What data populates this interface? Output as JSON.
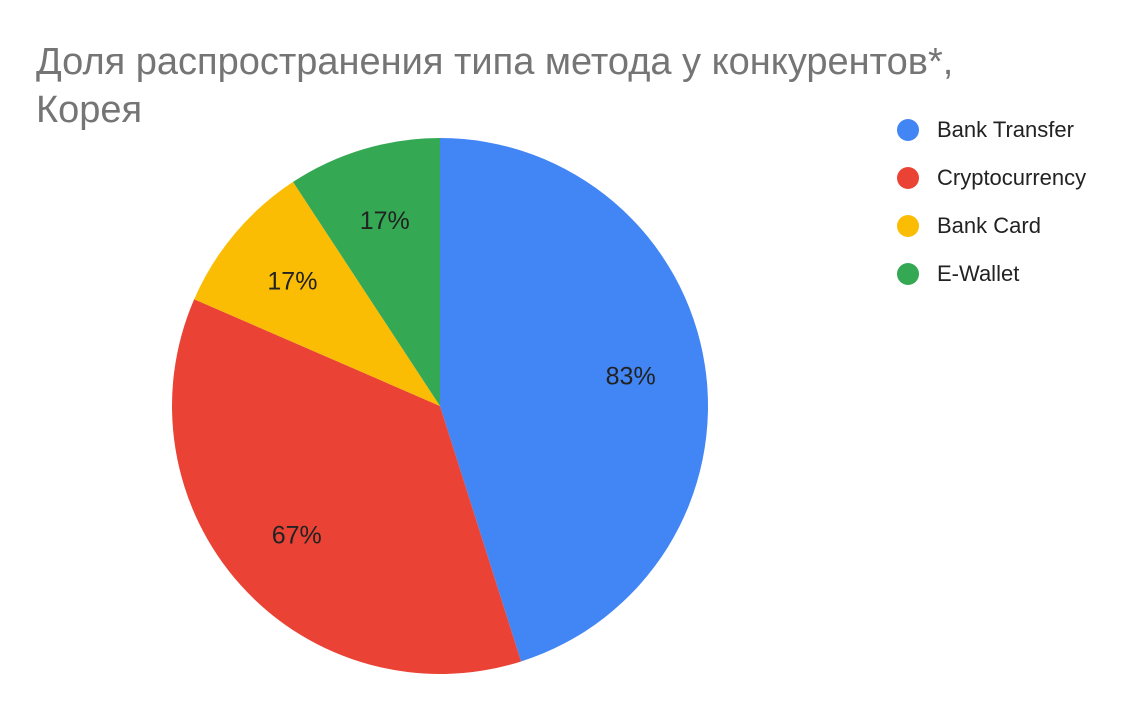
{
  "chart_data": {
    "type": "pie",
    "title": "Доля распространения типа метода у конкурентов*, Корея",
    "labels": [
      "Bank Transfer",
      "Cryptocurrency",
      "Bank Card",
      "E-Wallet"
    ],
    "values": [
      83,
      67,
      17,
      17
    ],
    "value_labels": [
      "83%",
      "67%",
      "17%",
      "17%"
    ],
    "colors": [
      "#4285f4",
      "#ea4335",
      "#fbbc04",
      "#34a853"
    ],
    "legend_position": "right",
    "start_angle": "top",
    "direction": "clockwise"
  }
}
